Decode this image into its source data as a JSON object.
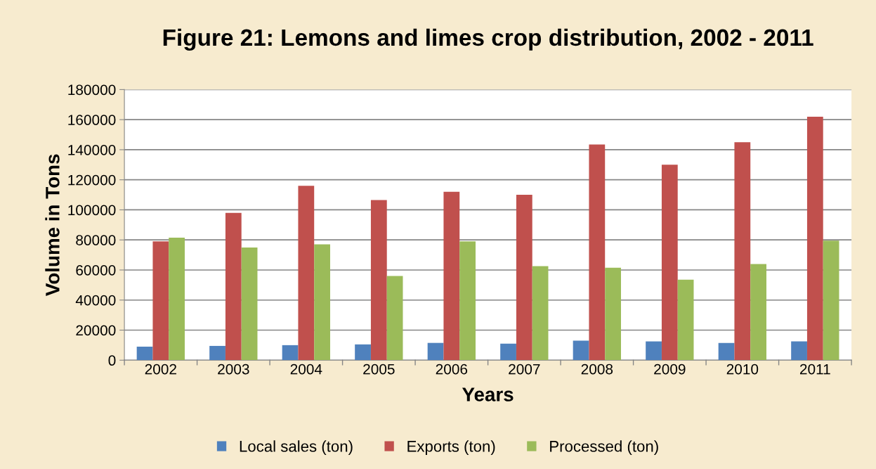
{
  "chart_data": {
    "type": "bar",
    "title": "Figure 21: Lemons and limes crop distribution, 2002 - 2011",
    "xlabel": "Years",
    "ylabel": "Volume in Tons",
    "categories": [
      "2002",
      "2003",
      "2004",
      "2005",
      "2006",
      "2007",
      "2008",
      "2009",
      "2010",
      "2011"
    ],
    "series": [
      {
        "name": "Local sales (ton)",
        "color": "#4f81bd",
        "values": [
          9000,
          9500,
          10000,
          10500,
          11500,
          11000,
          13000,
          12500,
          11500,
          12500
        ]
      },
      {
        "name": "Exports (ton)",
        "color": "#c0504d",
        "values": [
          79000,
          98000,
          116000,
          106500,
          112000,
          110000,
          143500,
          130000,
          145000,
          162000
        ]
      },
      {
        "name": "Processed (ton)",
        "color": "#9bbb59",
        "values": [
          81500,
          75000,
          77000,
          56000,
          79000,
          62500,
          61500,
          53500,
          64000,
          79500
        ]
      }
    ],
    "ylim": [
      0,
      180000
    ],
    "yticks": [
      0,
      20000,
      40000,
      60000,
      80000,
      100000,
      120000,
      140000,
      160000,
      180000
    ],
    "grid": "y",
    "legend": "bottom"
  }
}
